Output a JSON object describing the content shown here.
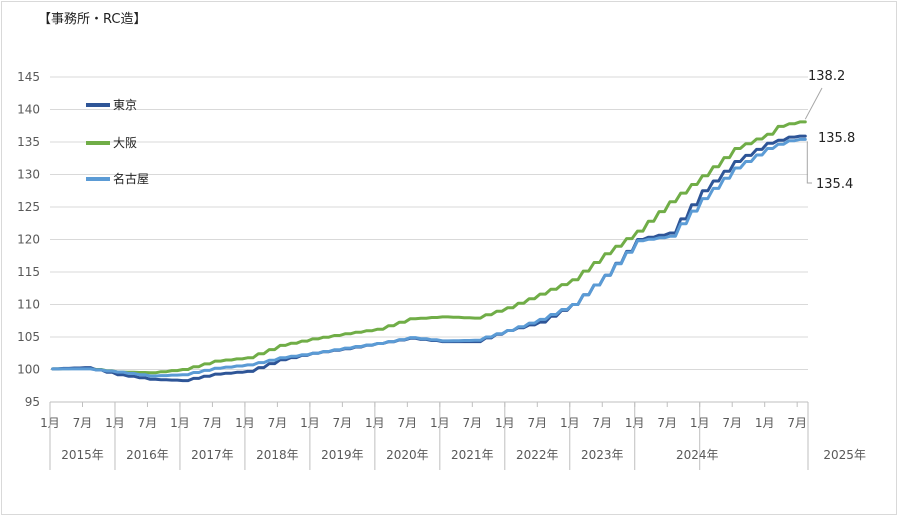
{
  "chart_data": {
    "type": "line",
    "title": "【事務所・RC造】",
    "ylim": [
      95,
      145
    ],
    "yticks": [
      95,
      100,
      105,
      110,
      115,
      120,
      125,
      130,
      135,
      140,
      145
    ],
    "grid": true,
    "legend_position": "top-left",
    "x_month_labels": [
      "1月",
      "7月"
    ],
    "years": [
      "2015年",
      "2016年",
      "2017年",
      "2018年",
      "2019年",
      "2020年",
      "2021年",
      "2022年",
      "2023年",
      "2024年",
      "2025年"
    ],
    "x_start": "2015-01",
    "x_end": "2025-05",
    "series": [
      {
        "name": "東京",
        "color": "#2e5597",
        "anchors": [
          [
            0,
            100.1
          ],
          [
            6,
            100.3
          ],
          [
            12,
            99.2
          ],
          [
            18,
            98.5
          ],
          [
            24,
            98.3
          ],
          [
            30,
            99.3
          ],
          [
            36,
            99.7
          ],
          [
            42,
            101.5
          ],
          [
            48,
            102.5
          ],
          [
            54,
            103.2
          ],
          [
            60,
            104.0
          ],
          [
            66,
            104.8
          ],
          [
            72,
            104.3
          ],
          [
            78,
            104.3
          ],
          [
            84,
            106.0
          ],
          [
            90,
            107.3
          ],
          [
            96,
            110.0
          ],
          [
            102,
            114.5
          ],
          [
            108,
            120.0
          ],
          [
            114,
            121.0
          ],
          [
            120,
            127.5
          ],
          [
            126,
            132.0
          ],
          [
            132,
            134.8
          ],
          [
            135,
            135.5
          ],
          [
            137,
            136.0
          ],
          [
            139,
            135.8
          ]
        ]
      },
      {
        "name": "大阪",
        "color": "#70ad47",
        "anchors": [
          [
            0,
            100.1
          ],
          [
            6,
            100.2
          ],
          [
            12,
            99.6
          ],
          [
            18,
            99.5
          ],
          [
            24,
            100.0
          ],
          [
            30,
            101.3
          ],
          [
            36,
            101.8
          ],
          [
            42,
            103.7
          ],
          [
            48,
            104.7
          ],
          [
            54,
            105.5
          ],
          [
            60,
            106.2
          ],
          [
            66,
            107.8
          ],
          [
            72,
            108.1
          ],
          [
            78,
            107.9
          ],
          [
            84,
            109.5
          ],
          [
            90,
            111.6
          ],
          [
            96,
            113.8
          ],
          [
            102,
            117.8
          ],
          [
            108,
            121.3
          ],
          [
            114,
            125.8
          ],
          [
            120,
            129.8
          ],
          [
            126,
            134.0
          ],
          [
            132,
            136.2
          ],
          [
            134,
            137.4
          ],
          [
            137,
            138.0
          ],
          [
            139,
            138.2
          ]
        ]
      },
      {
        "name": "名古屋",
        "color": "#5b9bd5",
        "anchors": [
          [
            0,
            100.1
          ],
          [
            6,
            100.1
          ],
          [
            12,
            99.6
          ],
          [
            18,
            99.0
          ],
          [
            24,
            99.2
          ],
          [
            30,
            100.2
          ],
          [
            36,
            100.7
          ],
          [
            42,
            101.8
          ],
          [
            48,
            102.5
          ],
          [
            54,
            103.3
          ],
          [
            60,
            104.0
          ],
          [
            66,
            104.9
          ],
          [
            72,
            104.4
          ],
          [
            78,
            104.5
          ],
          [
            84,
            106.0
          ],
          [
            90,
            107.7
          ],
          [
            96,
            110.0
          ],
          [
            102,
            114.5
          ],
          [
            108,
            119.8
          ],
          [
            114,
            120.5
          ],
          [
            120,
            126.3
          ],
          [
            126,
            131.0
          ],
          [
            132,
            134.0
          ],
          [
            135,
            135.0
          ],
          [
            137,
            135.4
          ],
          [
            139,
            135.4
          ]
        ]
      }
    ],
    "end_labels": [
      {
        "series": "大阪",
        "text": "138.2"
      },
      {
        "series": "東京",
        "text": "135.8"
      },
      {
        "series": "名古屋",
        "text": "135.4"
      }
    ]
  }
}
